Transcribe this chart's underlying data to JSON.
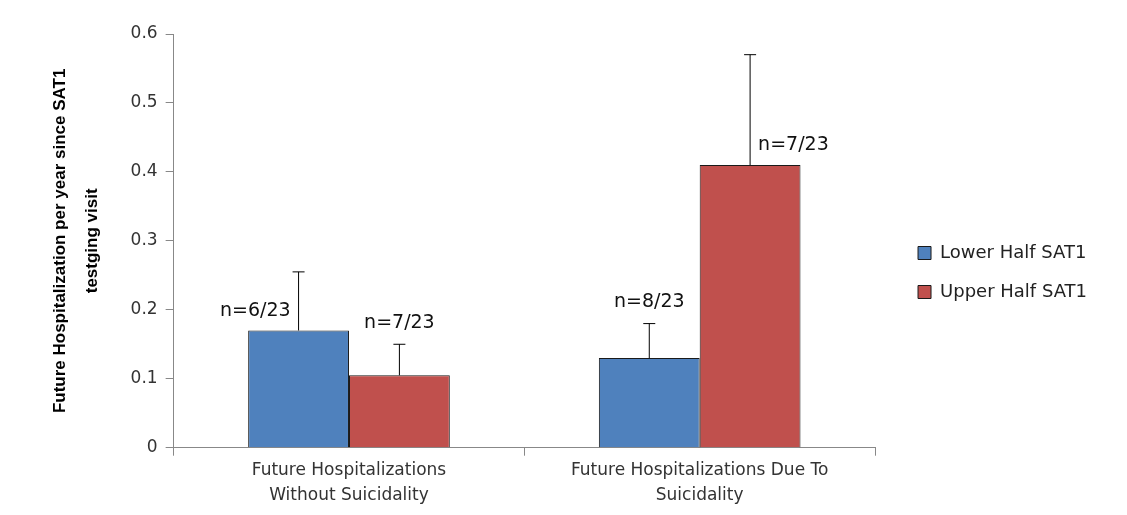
{
  "chart_data": {
    "type": "bar",
    "ylabel": "Future Hospitalization per year since SAT1 testging visit",
    "categories": [
      "Future Hospitalizations Without Suicidality",
      "Future Hospitalizations Due To Suicidality"
    ],
    "series": [
      {
        "name": "Lower Half SAT1",
        "color": "#4f81bd",
        "values": [
          0.17,
          0.13
        ],
        "errors": [
          [
            0.17,
            0.255
          ],
          [
            0.13,
            0.18
          ]
        ],
        "value_labels": [
          "n=6/23",
          "n=8/23"
        ]
      },
      {
        "name": "Upper Half SAT1",
        "color": "#c0504d",
        "values": [
          0.105,
          0.41
        ],
        "errors": [
          [
            0.105,
            0.15
          ],
          [
            0.41,
            0.57
          ]
        ],
        "value_labels": [
          "n=7/23",
          "n=7/23"
        ]
      }
    ],
    "ylim": [
      0,
      0.6
    ],
    "yticks": [
      0,
      0.1,
      0.2,
      0.3,
      0.4,
      0.5,
      0.6
    ],
    "legend": "right"
  }
}
